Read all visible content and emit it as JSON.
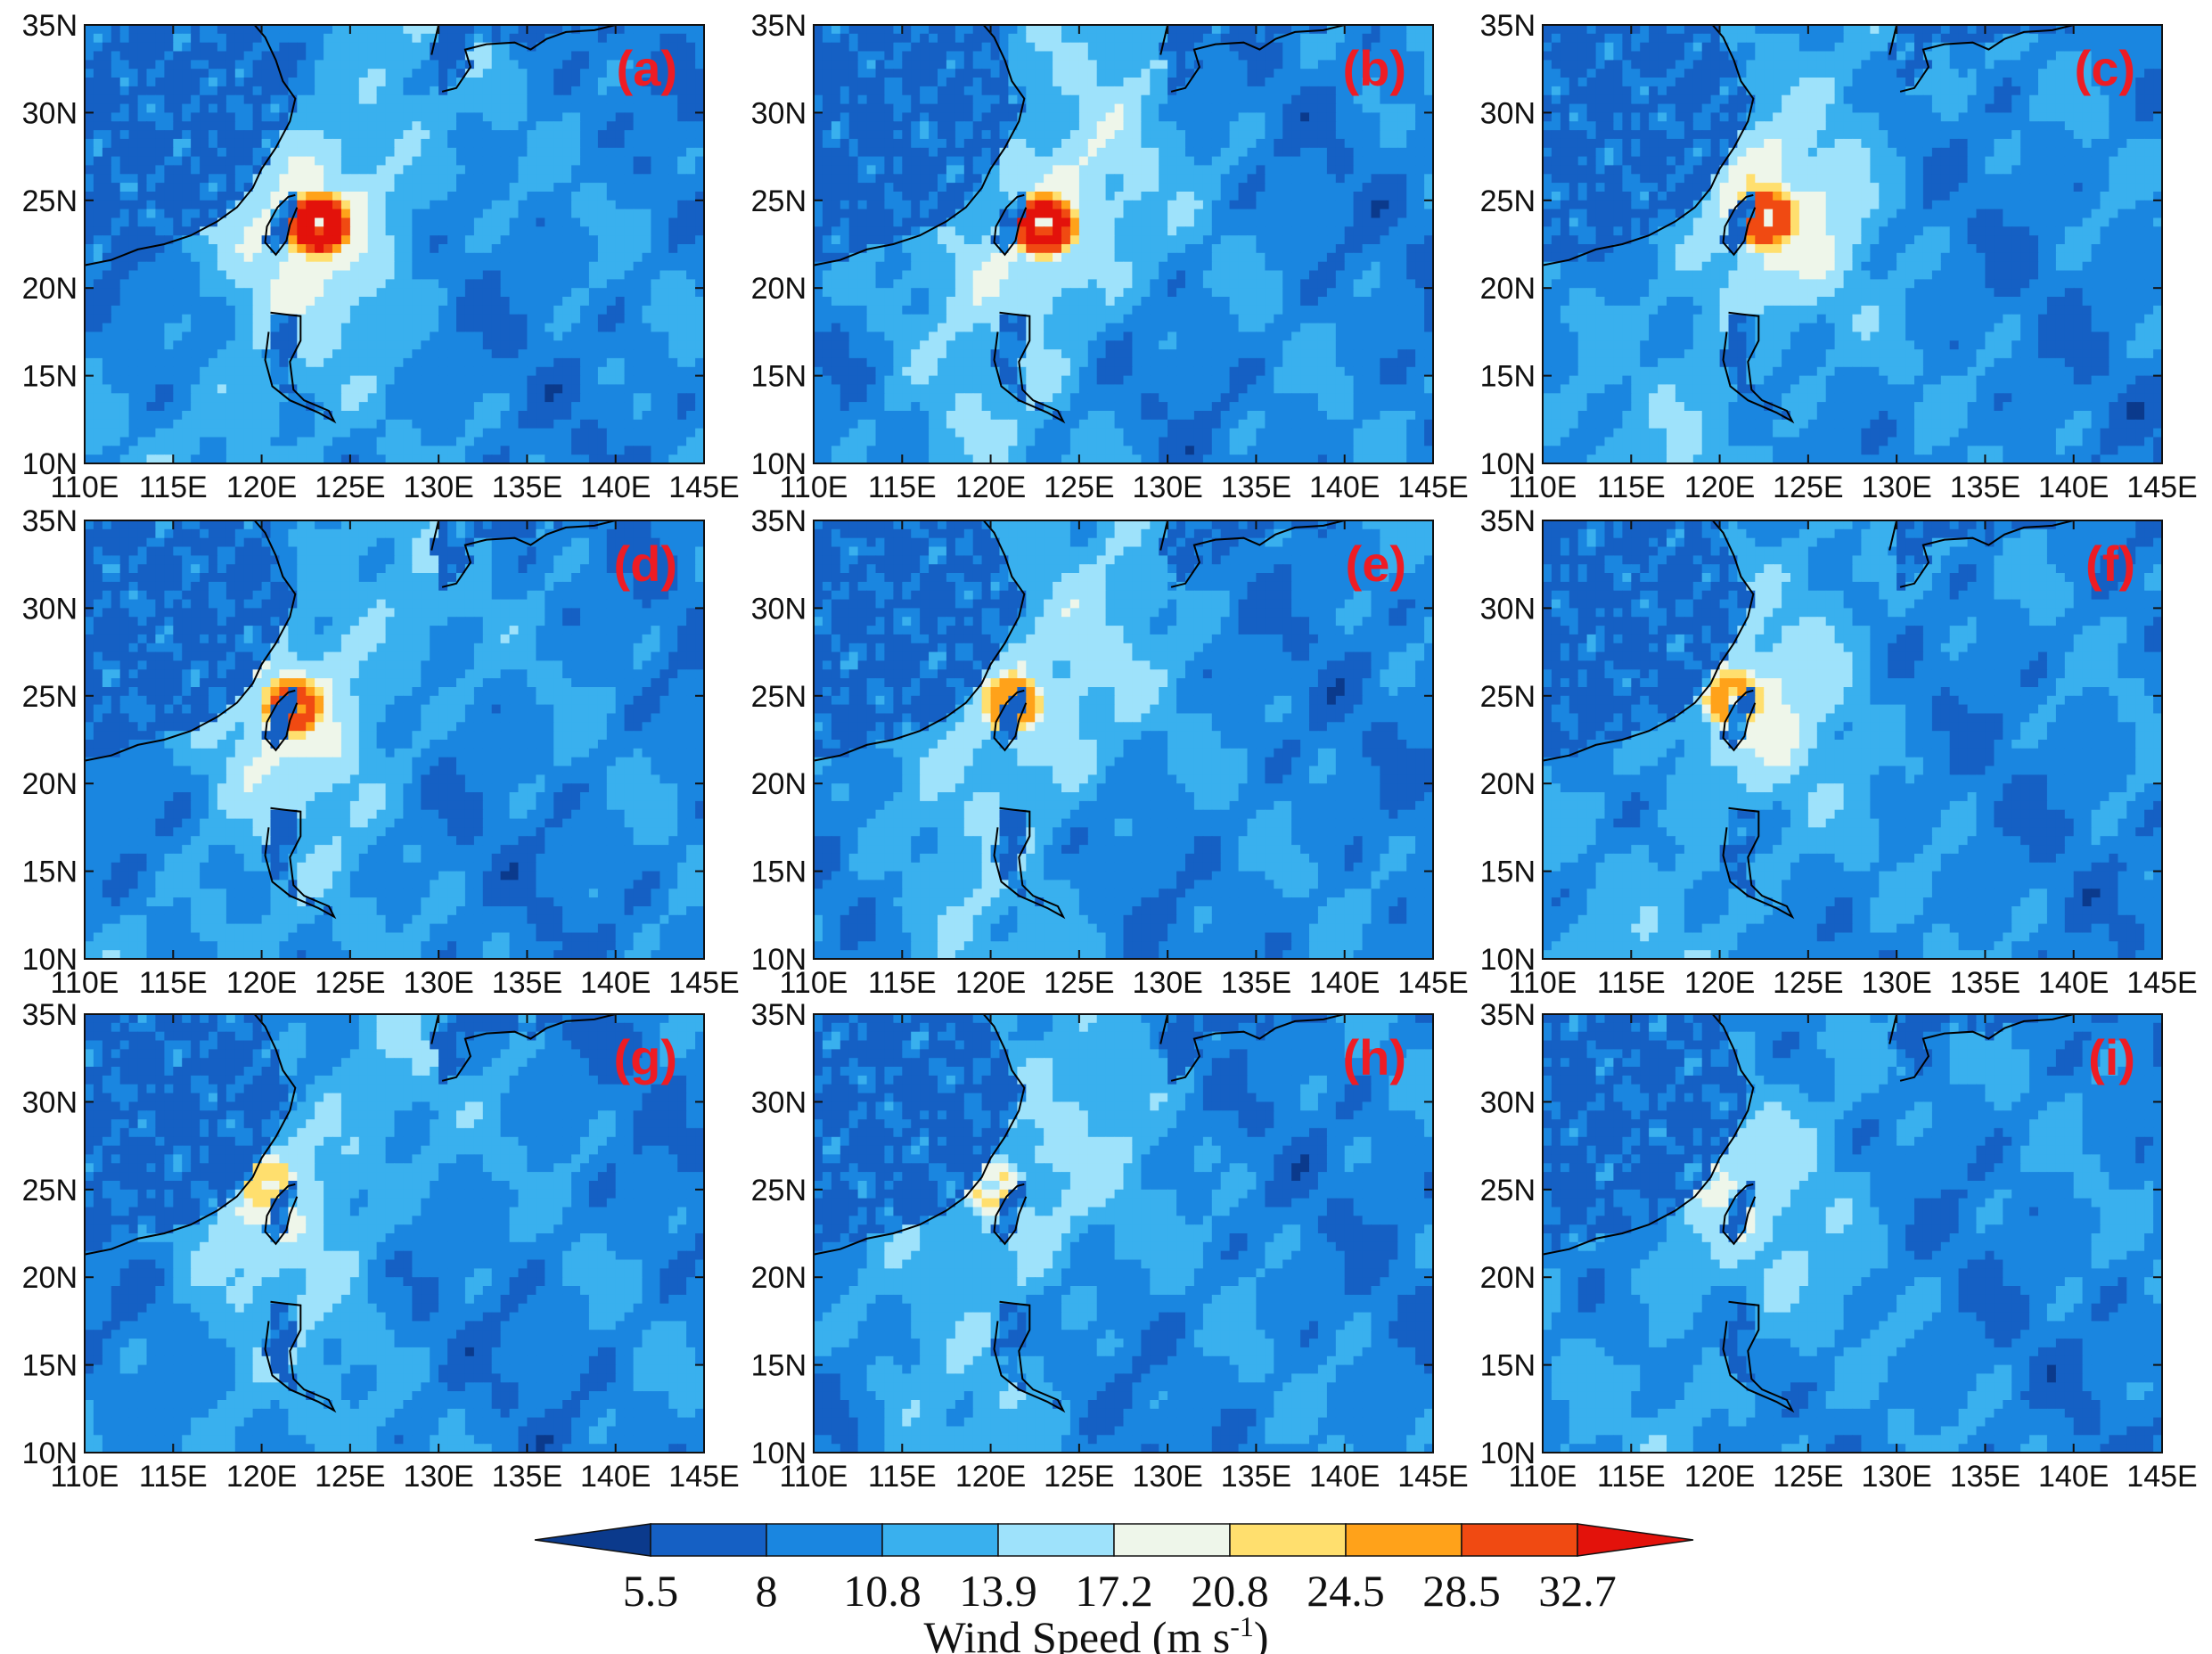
{
  "figure": {
    "colorbar": {
      "title": "Wind Speed (m s",
      "title_superscript": "-1",
      "title_close": ")",
      "levels": [
        "5.5",
        "8",
        "10.8",
        "13.9",
        "17.2",
        "20.8",
        "24.5",
        "28.5",
        "32.7"
      ],
      "colors": [
        "#0b3a8c",
        "#1560c4",
        "#1a86e0",
        "#39b0ee",
        "#9ee2fb",
        "#eef6ea",
        "#ffdf6e",
        "#ffa21a",
        "#f04a12",
        "#e3120b"
      ]
    },
    "panels": [
      {
        "label": "(a)",
        "center": [
          123.2,
          23.6
        ],
        "peak": 36,
        "halo": 1.0
      },
      {
        "label": "(b)",
        "center": [
          123.0,
          23.6
        ],
        "peak": 35,
        "halo": 1.0
      },
      {
        "label": "(c)",
        "center": [
          122.6,
          24.0
        ],
        "peak": 32,
        "halo": 0.95
      },
      {
        "label": "(d)",
        "center": [
          121.8,
          24.4
        ],
        "peak": 30,
        "halo": 0.9
      },
      {
        "label": "(e)",
        "center": [
          121.2,
          24.6
        ],
        "peak": 27,
        "halo": 0.85
      },
      {
        "label": "(f)",
        "center": [
          120.8,
          24.8
        ],
        "peak": 26,
        "halo": 0.85
      },
      {
        "label": "(g)",
        "center": [
          120.4,
          25.2
        ],
        "peak": 23,
        "halo": 0.8
      },
      {
        "label": "(h)",
        "center": [
          120.0,
          25.2
        ],
        "peak": 21,
        "halo": 0.75
      },
      {
        "label": "(i)",
        "center": [
          119.6,
          25.2
        ],
        "peak": 18,
        "halo": 0.7
      }
    ],
    "axes": {
      "x_ticks": [
        "110E",
        "115E",
        "120E",
        "125E",
        "130E",
        "135E",
        "140E",
        "145E"
      ],
      "x_ticks_cut": "145E",
      "y_ticks": [
        "35N",
        "30N",
        "25N",
        "20N",
        "15N",
        "10N"
      ],
      "lon_range": [
        110,
        145
      ],
      "lat_range": [
        10,
        35
      ]
    }
  }
}
